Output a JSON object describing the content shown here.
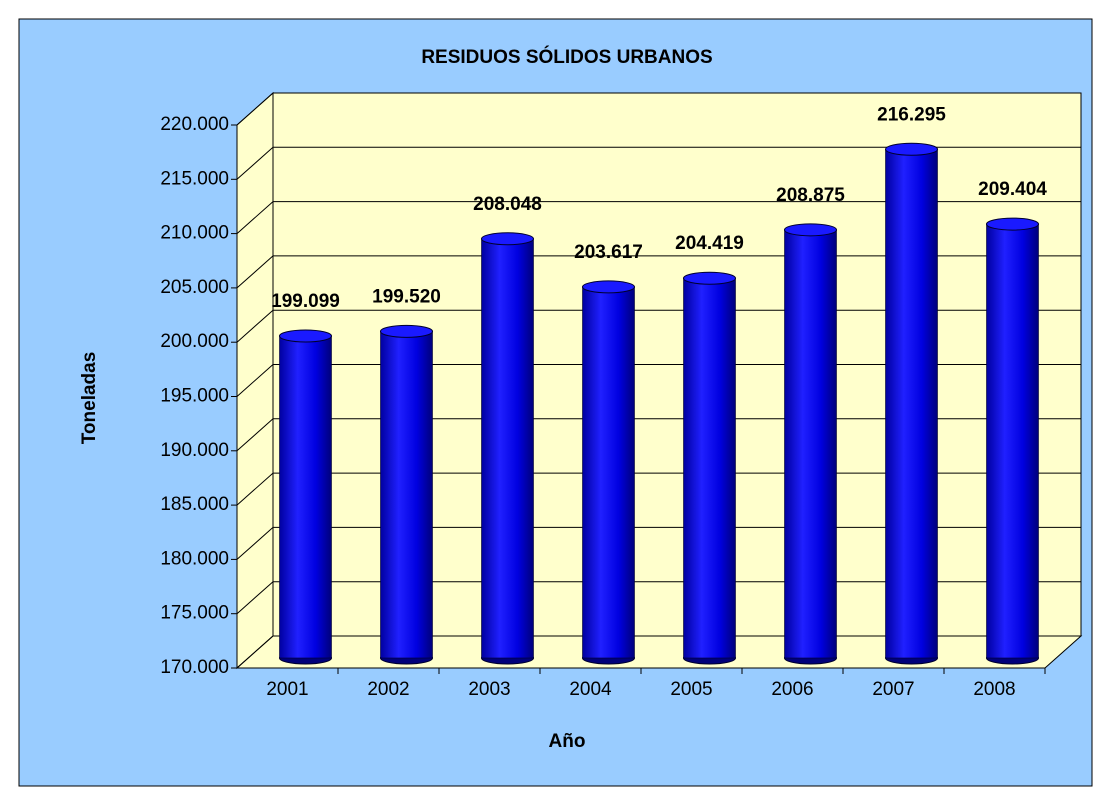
{
  "chart_data": {
    "type": "bar",
    "title": "RESIDUOS SÓLIDOS URBANOS",
    "x_label": "Año",
    "y_label": "Toneladas",
    "categories": [
      "2001",
      "2002",
      "2003",
      "2004",
      "2005",
      "2006",
      "2007",
      "2008"
    ],
    "values": [
      199099,
      199520,
      208048,
      203617,
      204419,
      208875,
      216295,
      209404
    ],
    "value_labels": [
      "199.099",
      "199.520",
      "208.048",
      "203.617",
      "204.419",
      "208.875",
      "216.295",
      "209.404"
    ],
    "color": "#1a1aff",
    "ylim": [
      170000,
      220000
    ],
    "yticks": [
      {
        "value": 170000,
        "label": "170.000"
      },
      {
        "value": 175000,
        "label": "175.000"
      },
      {
        "value": 180000,
        "label": "180.000"
      },
      {
        "value": 185000,
        "label": "185.000"
      },
      {
        "value": 190000,
        "label": "190.000"
      },
      {
        "value": 195000,
        "label": "195.000"
      },
      {
        "value": 200000,
        "label": "200.000"
      },
      {
        "value": 205000,
        "label": "205.000"
      },
      {
        "value": 210000,
        "label": "210.000"
      },
      {
        "value": 215000,
        "label": "215.000"
      },
      {
        "value": 220000,
        "label": "220.000"
      }
    ],
    "grid": true
  }
}
